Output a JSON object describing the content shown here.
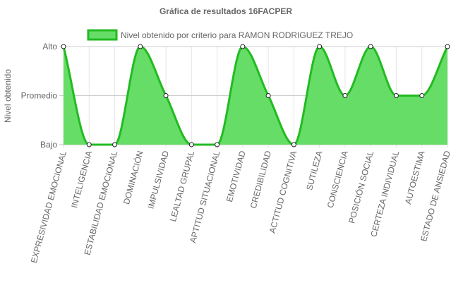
{
  "chart_data": {
    "type": "area",
    "title": "Gráfica de resultados 16FACPER",
    "ylabel": "Nivel obtenido",
    "xlabel": "",
    "y_levels": [
      "Bajo",
      "Promedio",
      "Alto"
    ],
    "ylim": [
      0,
      2
    ],
    "grid": true,
    "legend_position": "top",
    "categories": [
      "EXPRESIVIDAD EMOCIONAL",
      "INTELIGENCIA",
      "ESTABILIDAD EMOCIONAL",
      "DOMINACIÓN",
      "IMPULSIVIDAD",
      "LEALTAD GRUPAL",
      "APTITUD SITUACIONAL",
      "EMOTIVIDAD",
      "CREDIBILIDAD",
      "ACTITUD COGNITIVA",
      "SUTILEZA",
      "CONSCIENCIA",
      "POSICIÓN SOCIAL",
      "CERTEZA INDIVIDUAL",
      "AUTOESTIMA",
      "ESTADO DE ANSIEDAD"
    ],
    "series": [
      {
        "name": "Nivel obtenido por criterio para RAMON RODRIGUEZ TREJO",
        "values": [
          2,
          0,
          0,
          2,
          1,
          0,
          0,
          2,
          1,
          0,
          2,
          1,
          2,
          1,
          1,
          2
        ],
        "fill_color": "#66dd66",
        "line_color": "#22bb22"
      }
    ]
  }
}
